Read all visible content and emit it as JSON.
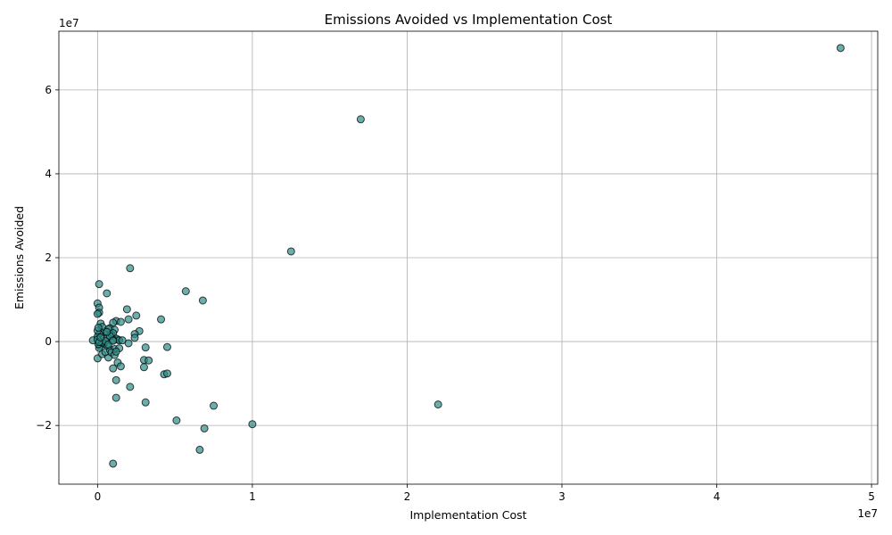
{
  "chart_data": {
    "type": "scatter",
    "title": "Emissions Avoided vs Implementation Cost",
    "xlabel": "Implementation Cost",
    "ylabel": "Emissions Avoided",
    "x_offset_label": "1e7",
    "y_offset_label": "1e7",
    "xlim": [
      -2500000,
      50400000
    ],
    "ylim": [
      -34000000,
      74000000
    ],
    "xticks": [
      0,
      10000000,
      20000000,
      30000000,
      40000000,
      50000000
    ],
    "xtick_labels": [
      "0",
      "1",
      "2",
      "3",
      "4",
      "5"
    ],
    "yticks": [
      -20000000,
      0,
      20000000,
      40000000,
      60000000
    ],
    "ytick_labels": [
      "−2",
      "0",
      "2",
      "4",
      "6"
    ],
    "grid": true,
    "marker_color": "#2e8b88",
    "x": [
      48000000,
      17000000,
      12500000,
      22000000,
      2100000,
      5700000,
      6800000,
      100000,
      600000,
      0,
      100000,
      100000,
      0,
      1900000,
      2500000,
      4100000,
      2000000,
      1200000,
      1000000,
      1500000,
      2700000,
      2400000,
      2400000,
      200000,
      500000,
      800000,
      1100000,
      1300000,
      300000,
      700000,
      200000,
      100000,
      0,
      0,
      50000,
      400000,
      600000,
      900000,
      1000000,
      1200000,
      1400000,
      2000000,
      3100000,
      4500000,
      3000000,
      3300000,
      1300000,
      1500000,
      3000000,
      1000000,
      4300000,
      4500000,
      1200000,
      2100000,
      1200000,
      3100000,
      7500000,
      5100000,
      6900000,
      10000000,
      6600000,
      1000000,
      0,
      300000,
      700000,
      500000,
      800000,
      1100000,
      600000,
      400000,
      200000,
      150000,
      100000,
      50000,
      900000,
      1400000,
      1100000,
      1000000,
      800000,
      600000,
      -300000,
      300000,
      500000,
      700000,
      1000000,
      1200000,
      1600000,
      0,
      100000,
      200000
    ],
    "y": [
      70000000,
      53000000,
      21500000,
      -15000000,
      17500000,
      12000000,
      9800000,
      13700000,
      11500000,
      9100000,
      8100000,
      6900000,
      6600000,
      7700000,
      6200000,
      5300000,
      5300000,
      4900000,
      4500000,
      4700000,
      2500000,
      1800000,
      900000,
      4300000,
      2500000,
      3200000,
      2800000,
      500000,
      3500000,
      3000000,
      2200000,
      1800000,
      1200000,
      2600000,
      3300000,
      600000,
      800000,
      1600000,
      2000000,
      700000,
      300000,
      -400000,
      -1400000,
      -1300000,
      -4400000,
      -4500000,
      -5000000,
      -5900000,
      -6100000,
      -6400000,
      -7800000,
      -7600000,
      -9200000,
      -10800000,
      -13400000,
      -14500000,
      -15300000,
      -18800000,
      -20700000,
      -19700000,
      -25800000,
      -29100000,
      -4000000,
      -3000000,
      -3800000,
      -2500000,
      -2000000,
      -1800000,
      -900000,
      -500000,
      -300000,
      -1000000,
      -1500000,
      -600000,
      -2600000,
      -1600000,
      -3200000,
      400000,
      1300000,
      2300000,
      300000,
      -200000,
      100000,
      -700000,
      200000,
      -2400000,
      300000,
      500000,
      -100000,
      1000000
    ]
  }
}
